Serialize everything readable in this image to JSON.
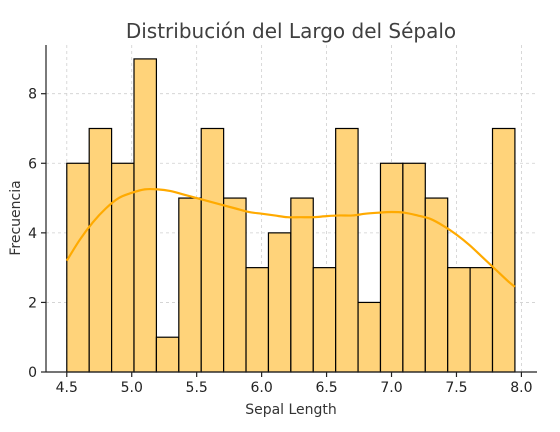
{
  "colors": {
    "bar_fill": "#ffd37a",
    "bar_edge": "#000000",
    "kde_line": "#ffaa00",
    "grid": "#cfcfcf"
  },
  "chart_data": {
    "type": "bar",
    "title": "Distribución del Largo del Sépalo",
    "xlabel": "Sepal Length",
    "ylabel": "Frecuencia",
    "bins": {
      "start": 4.5,
      "end": 7.95,
      "count": 20
    },
    "values": [
      6,
      7,
      6,
      9,
      1,
      5,
      7,
      5,
      3,
      4,
      5,
      3,
      7,
      2,
      6,
      6,
      5,
      3,
      3,
      7
    ],
    "xlim": [
      4.5,
      7.95
    ],
    "ylim": [
      0,
      9.4
    ],
    "xticks": [
      4.5,
      5.0,
      5.5,
      6.0,
      6.5,
      7.0,
      7.5,
      8.0
    ],
    "xtick_labels": [
      "4.5",
      "5.0",
      "5.5",
      "6.0",
      "6.5",
      "7.0",
      "7.5",
      "8.0"
    ],
    "yticks": [
      0,
      2,
      4,
      6,
      8
    ],
    "ytick_labels": [
      "0",
      "2",
      "4",
      "6",
      "8"
    ],
    "kde": {
      "x": [
        4.5,
        4.6,
        4.7,
        4.8,
        4.9,
        5.0,
        5.1,
        5.2,
        5.3,
        5.4,
        5.5,
        5.6,
        5.7,
        5.8,
        5.9,
        6.0,
        6.1,
        6.2,
        6.3,
        6.4,
        6.5,
        6.6,
        6.7,
        6.8,
        6.9,
        7.0,
        7.1,
        7.2,
        7.3,
        7.4,
        7.5,
        7.6,
        7.7,
        7.8,
        7.9,
        7.95
      ],
      "y": [
        3.2,
        3.8,
        4.3,
        4.7,
        5.0,
        5.15,
        5.25,
        5.25,
        5.2,
        5.1,
        5.0,
        4.9,
        4.8,
        4.7,
        4.6,
        4.55,
        4.5,
        4.45,
        4.45,
        4.45,
        4.48,
        4.5,
        4.5,
        4.55,
        4.58,
        4.6,
        4.58,
        4.5,
        4.4,
        4.2,
        3.95,
        3.65,
        3.3,
        2.95,
        2.6,
        2.45
      ]
    },
    "grid": true,
    "legend": "none"
  }
}
